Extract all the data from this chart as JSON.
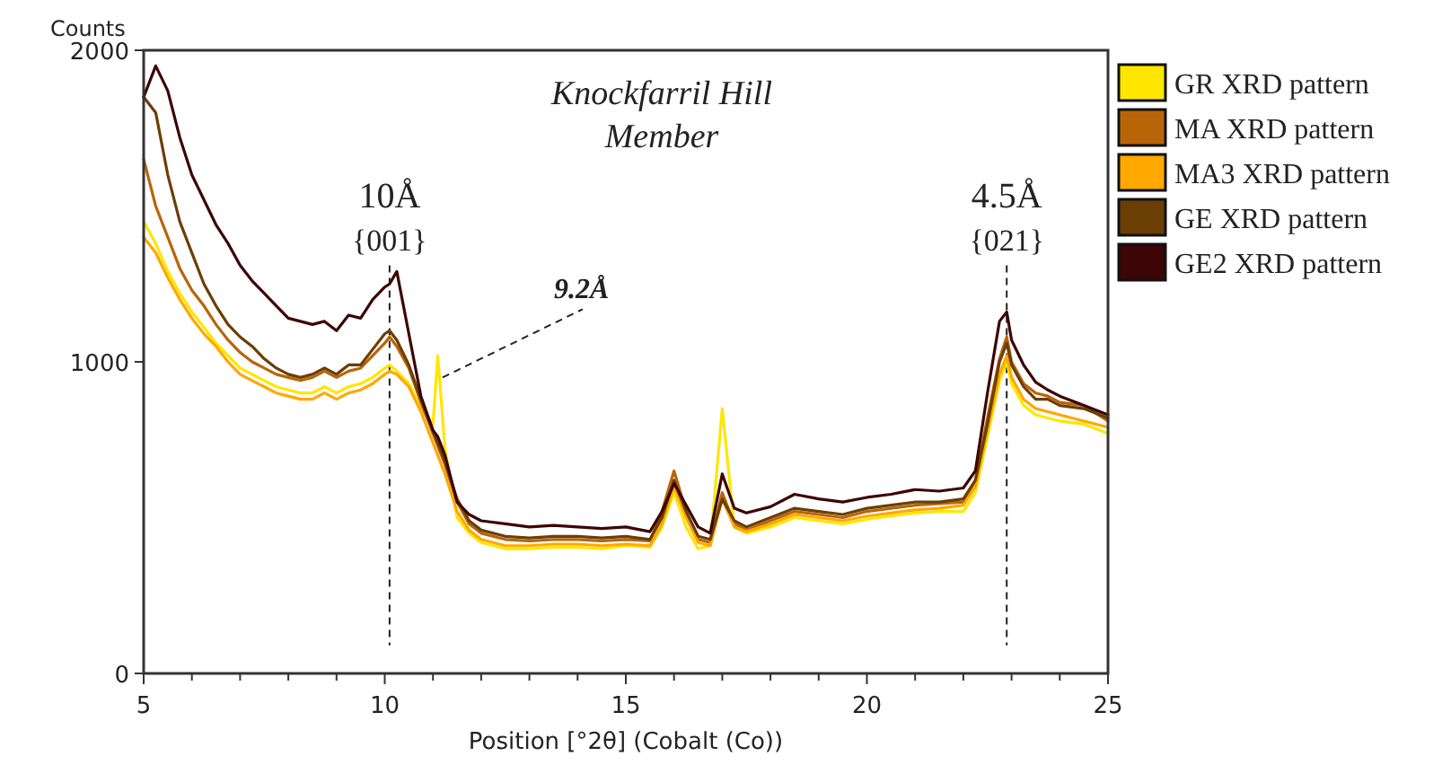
{
  "chart_data": {
    "type": "line",
    "title": "Knockfarril Hill Member",
    "xlabel": "Position [°2θ] (Cobalt (Co))",
    "ylabel": "Counts",
    "x": [
      5,
      5.25,
      5.5,
      5.75,
      6,
      6.25,
      6.5,
      6.75,
      7,
      7.25,
      7.5,
      7.75,
      8,
      8.25,
      8.5,
      8.75,
      9,
      9.25,
      9.5,
      9.75,
      10,
      10.1,
      10.25,
      10.5,
      10.75,
      11,
      11.1,
      11.25,
      11.5,
      11.75,
      12,
      12.5,
      13,
      13.5,
      14,
      14.5,
      15,
      15.5,
      15.75,
      16,
      16.25,
      16.5,
      16.75,
      17,
      17.25,
      17.5,
      18,
      18.5,
      19,
      19.5,
      20,
      20.5,
      21,
      21.5,
      22,
      22.25,
      22.5,
      22.75,
      22.9,
      23,
      23.25,
      23.5,
      23.75,
      24,
      24.5,
      25
    ],
    "series": [
      {
        "name": "GR XRD pattern",
        "color": "#ffe600",
        "values": [
          1450,
          1380,
          1290,
          1220,
          1160,
          1110,
          1060,
          1020,
          980,
          960,
          940,
          920,
          910,
          900,
          900,
          920,
          900,
          920,
          930,
          950,
          980,
          990,
          970,
          930,
          850,
          800,
          1020,
          720,
          500,
          450,
          420,
          400,
          400,
          405,
          405,
          400,
          410,
          405,
          470,
          580,
          470,
          400,
          410,
          850,
          470,
          450,
          470,
          500,
          490,
          480,
          495,
          505,
          515,
          520,
          520,
          580,
          760,
          940,
          1000,
          930,
          860,
          830,
          820,
          810,
          800,
          770
        ]
      },
      {
        "name": "MA XRD pattern",
        "color": "#b8650a",
        "values": [
          1650,
          1500,
          1400,
          1300,
          1230,
          1180,
          1120,
          1070,
          1030,
          1000,
          980,
          960,
          950,
          940,
          950,
          970,
          950,
          970,
          980,
          1020,
          1060,
          1080,
          1050,
          980,
          870,
          770,
          730,
          670,
          550,
          480,
          450,
          430,
          425,
          430,
          430,
          425,
          430,
          425,
          520,
          650,
          520,
          430,
          420,
          580,
          480,
          460,
          490,
          520,
          510,
          500,
          520,
          530,
          540,
          545,
          550,
          620,
          820,
          1010,
          1080,
          1000,
          930,
          900,
          890,
          870,
          860,
          810
        ]
      },
      {
        "name": "MA3 XRD pattern",
        "color": "#ffa800",
        "values": [
          1400,
          1350,
          1270,
          1200,
          1140,
          1090,
          1050,
          1000,
          960,
          940,
          920,
          900,
          890,
          880,
          880,
          900,
          880,
          900,
          910,
          930,
          960,
          970,
          960,
          920,
          840,
          740,
          700,
          640,
          520,
          460,
          430,
          410,
          410,
          415,
          415,
          410,
          415,
          410,
          480,
          600,
          500,
          420,
          410,
          560,
          470,
          455,
          480,
          510,
          500,
          490,
          505,
          515,
          525,
          530,
          540,
          600,
          780,
          960,
          1020,
          950,
          880,
          850,
          840,
          830,
          810,
          790
        ]
      },
      {
        "name": "GE XRD pattern",
        "color": "#6b3e06",
        "values": [
          1850,
          1800,
          1600,
          1450,
          1350,
          1250,
          1180,
          1120,
          1080,
          1050,
          1010,
          980,
          960,
          950,
          960,
          980,
          960,
          990,
          990,
          1040,
          1090,
          1100,
          1070,
          990,
          880,
          780,
          740,
          680,
          560,
          490,
          460,
          440,
          435,
          440,
          440,
          435,
          440,
          430,
          500,
          620,
          520,
          440,
          430,
          560,
          490,
          470,
          500,
          530,
          520,
          510,
          530,
          540,
          550,
          550,
          560,
          620,
          800,
          1000,
          1060,
          990,
          920,
          880,
          880,
          860,
          850,
          820
        ]
      },
      {
        "name": "GE2 XRD pattern",
        "color": "#3d0505",
        "values": [
          1850,
          1950,
          1870,
          1720,
          1600,
          1520,
          1440,
          1380,
          1310,
          1260,
          1220,
          1180,
          1140,
          1130,
          1120,
          1130,
          1100,
          1150,
          1140,
          1200,
          1240,
          1250,
          1290,
          1090,
          890,
          780,
          760,
          700,
          550,
          510,
          490,
          480,
          470,
          475,
          470,
          465,
          470,
          455,
          520,
          610,
          540,
          470,
          450,
          640,
          530,
          515,
          535,
          575,
          560,
          550,
          565,
          575,
          590,
          585,
          595,
          650,
          900,
          1130,
          1160,
          1070,
          990,
          935,
          910,
          890,
          860,
          830
        ]
      }
    ],
    "xlim": [
      5,
      25
    ],
    "xticks": [
      5,
      {
        "value": 6,
        "label": null
      },
      {
        "value": 7,
        "label": null
      },
      {
        "value": 8,
        "label": null
      },
      {
        "value": 9,
        "label": null
      },
      10,
      {
        "value": 11,
        "label": null
      },
      {
        "value": 12,
        "label": null
      },
      {
        "value": 13,
        "label": null
      },
      {
        "value": 14,
        "label": null
      },
      15,
      {
        "value": 16,
        "label": null
      },
      {
        "value": 17,
        "label": null
      },
      {
        "value": 18,
        "label": null
      },
      {
        "value": 19,
        "label": null
      },
      20,
      {
        "value": 21,
        "label": null
      },
      {
        "value": 22,
        "label": null
      },
      {
        "value": 23,
        "label": null
      },
      {
        "value": 24,
        "label": null
      },
      25
    ],
    "ylim": [
      0,
      2000
    ],
    "yticks": [
      0,
      1000,
      2000
    ],
    "ref_lines": [
      {
        "axis": "x",
        "value": 10.1,
        "label": "10Å",
        "line_style": "dashed"
      },
      {
        "axis": "x",
        "value": 22.9,
        "label": "4.5Å",
        "line_style": "dashed"
      }
    ],
    "annotations": [
      "{001}",
      "{021}",
      {
        "text": "9.2Å",
        "x": 11.2,
        "y": 950
      }
    ],
    "legend": "right",
    "grid": false,
    "marker": "none",
    "line_style": "solid"
  }
}
